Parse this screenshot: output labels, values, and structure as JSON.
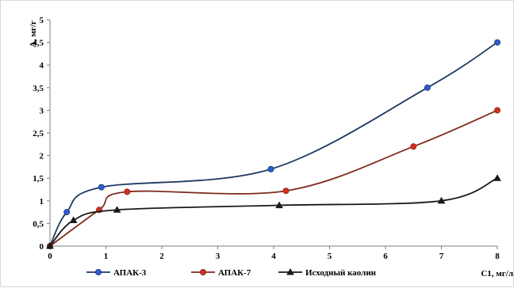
{
  "chart_data": {
    "type": "line",
    "title": "",
    "xlabel": "C1, мг/л",
    "ylabel": "А, мг/г",
    "xlim": [
      0,
      8
    ],
    "ylim": [
      0,
      5
    ],
    "xticks": [
      0,
      1,
      2,
      3,
      4,
      5,
      6,
      7,
      8
    ],
    "xtick_labels": [
      "0",
      "1",
      "2",
      "3",
      "4",
      "5",
      "6",
      "7",
      "8"
    ],
    "yticks": [
      0,
      0.5,
      1,
      1.5,
      2,
      2.5,
      3,
      3.5,
      4,
      4.5,
      5
    ],
    "ytick_labels": [
      "0",
      "0,5",
      "1",
      "1,5",
      "2",
      "2,5",
      "3",
      "3,5",
      "4",
      "4,5",
      "5"
    ],
    "grid": false,
    "legend_position": "bottom",
    "series": [
      {
        "name": "АПАК-3",
        "color": "#1f3864",
        "marker_color": "#2e5cd6",
        "marker": "circle",
        "x": [
          0,
          0.3,
          0.92,
          3.95,
          6.75,
          8.0
        ],
        "y": [
          0,
          0.75,
          1.3,
          1.7,
          3.5,
          4.5
        ]
      },
      {
        "name": "АПАК-7",
        "color": "#7f2a1d",
        "marker_color": "#d62d20",
        "marker": "circle",
        "x": [
          0,
          0.88,
          1.38,
          4.22,
          6.5,
          8.0
        ],
        "y": [
          0,
          0.8,
          1.2,
          1.22,
          2.2,
          3.0
        ]
      },
      {
        "name": "Исходный каолин",
        "color": "#1a1a1a",
        "marker_color": "#1a1a1a",
        "marker": "triangle",
        "x": [
          0,
          0.42,
          1.2,
          4.1,
          7.0,
          8.0
        ],
        "y": [
          0,
          0.57,
          0.8,
          0.9,
          1.0,
          1.5
        ]
      }
    ]
  }
}
